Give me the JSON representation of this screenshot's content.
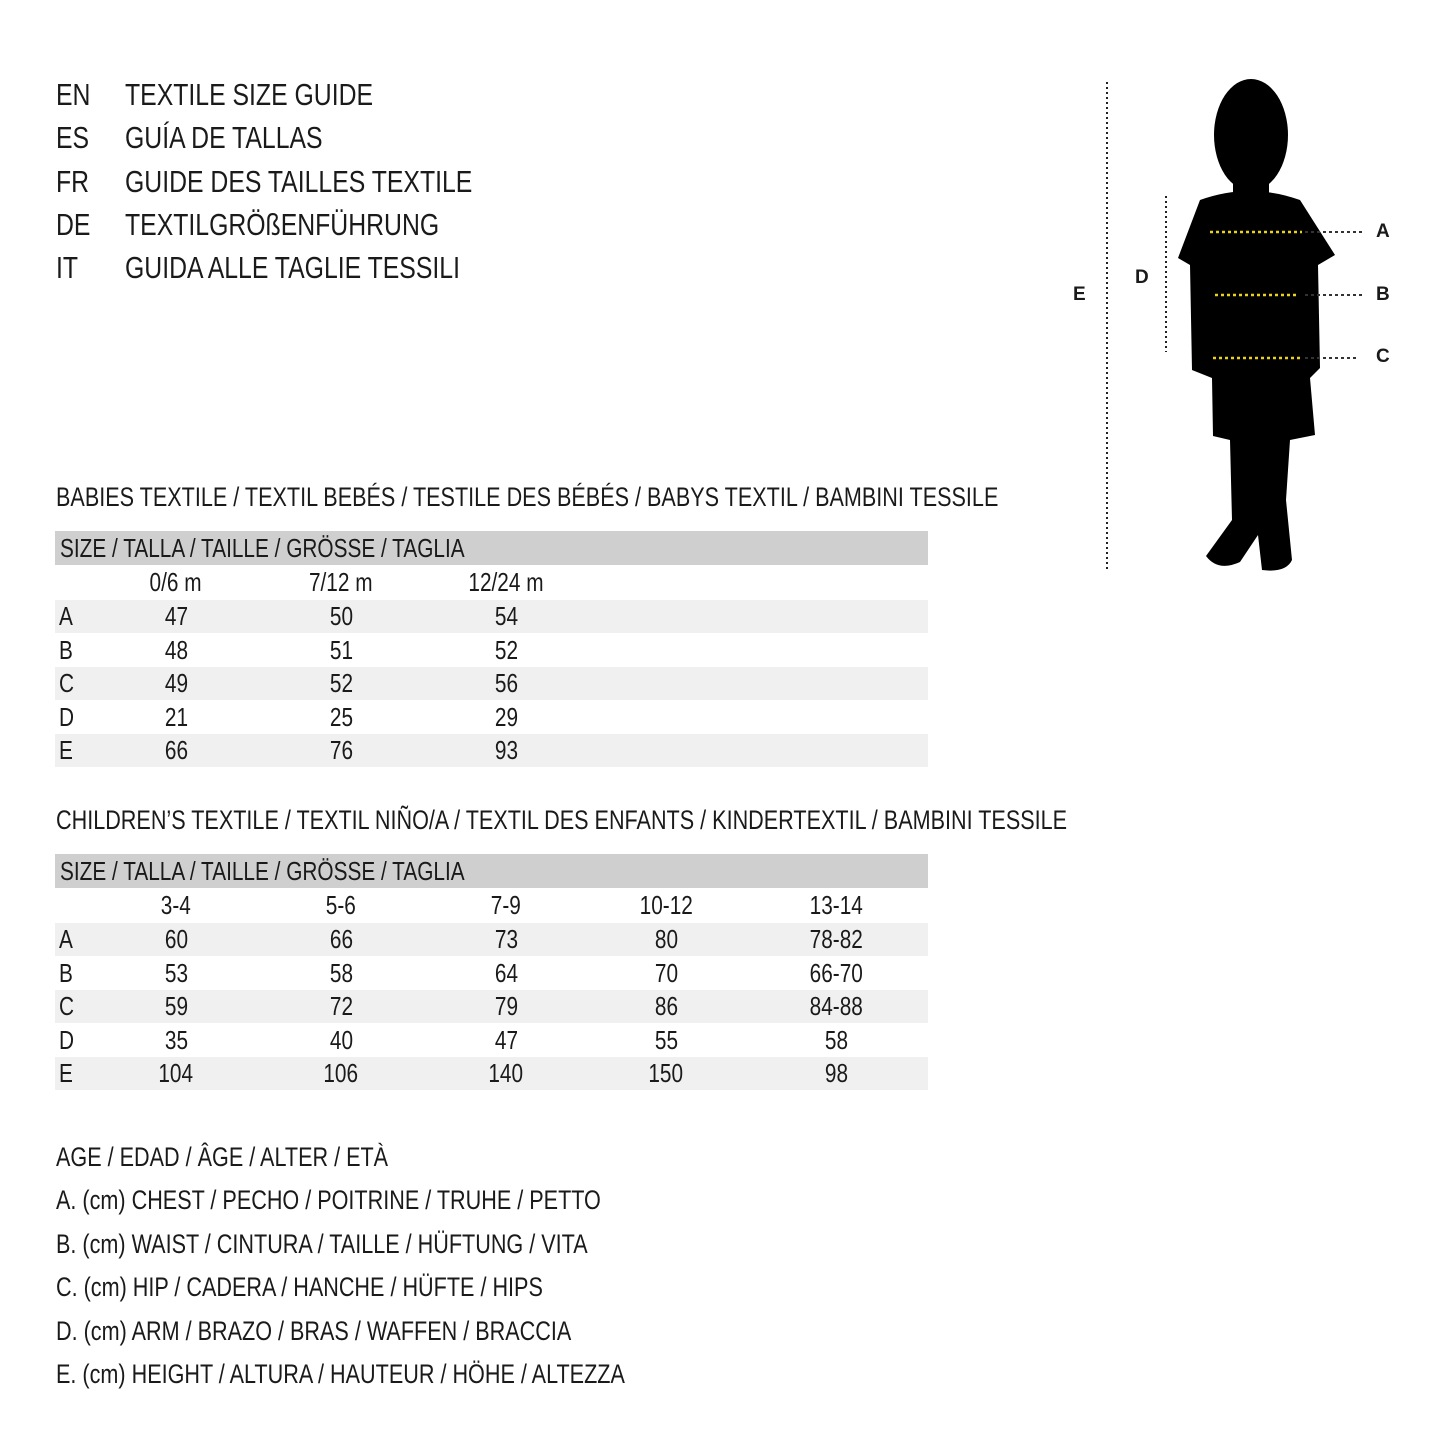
{
  "titles": [
    {
      "code": "EN",
      "text": "TEXTILE SIZE GUIDE"
    },
    {
      "code": "ES",
      "text": "GUÍA DE TALLAS"
    },
    {
      "code": "FR",
      "text": "GUIDE DES TAILLES TEXTILE"
    },
    {
      "code": "DE",
      "text": "TEXTILGRÖßENFÜHRUNG"
    },
    {
      "code": "IT",
      "text": "GUIDA ALLE TAGLIE TESSILI"
    }
  ],
  "figure": {
    "labels": {
      "A": "A",
      "B": "B",
      "C": "C",
      "D": "D",
      "E": "E"
    },
    "measure_line_color": "#e8d21d"
  },
  "babies": {
    "heading": "BABIES TEXTILE / TEXTIL BEBÉS / TESTILE DES BÉBÉS / BABYS TEXTIL / BAMBINI TESSILE",
    "size_label": "SIZE / TALLA / TAILLE / GRÖSSE / TAGLIA",
    "columns": [
      "0/6 m",
      "7/12 m",
      "12/24 m"
    ],
    "rows": [
      {
        "label": "A",
        "values": [
          "47",
          "50",
          "54"
        ]
      },
      {
        "label": "B",
        "values": [
          "48",
          "51",
          "52"
        ]
      },
      {
        "label": "C",
        "values": [
          "49",
          "52",
          "56"
        ]
      },
      {
        "label": "D",
        "values": [
          "21",
          "25",
          "29"
        ]
      },
      {
        "label": "E",
        "values": [
          "66",
          "76",
          "93"
        ]
      }
    ]
  },
  "children": {
    "heading": "CHILDREN’S TEXTILE / TEXTIL NIÑO/A / TEXTIL DES ENFANTS / KINDERTEXTIL / BAMBINI TESSILE",
    "size_label": "SIZE / TALLA / TAILLE / GRÖSSE / TAGLIA",
    "columns": [
      "3-4",
      "5-6",
      "7-9",
      "10-12",
      "13-14"
    ],
    "rows": [
      {
        "label": "A",
        "values": [
          "60",
          "66",
          "73",
          "80",
          "78-82"
        ]
      },
      {
        "label": "B",
        "values": [
          "53",
          "58",
          "64",
          "70",
          "66-70"
        ]
      },
      {
        "label": "C",
        "values": [
          "59",
          "72",
          "79",
          "86",
          "84-88"
        ]
      },
      {
        "label": "D",
        "values": [
          "35",
          "40",
          "47",
          "55",
          "58"
        ]
      },
      {
        "label": "E",
        "values": [
          "104",
          "106",
          "140",
          "150",
          "98"
        ]
      }
    ]
  },
  "legend": [
    "AGE / EDAD / ÂGE / ALTER / ETÀ",
    "A. (cm) CHEST / PECHO / POITRINE / TRUHE / PETTO",
    "B. (cm) WAIST / CINTURA / TAILLE / HÜFTUNG / VITA",
    "C. (cm) HIP / CADERA / HANCHE / HÜFTE / HIPS",
    "D. (cm) ARM / BRAZO / BRAS / WAFFEN / BRACCIA",
    "E. (cm) HEIGHT / ALTURA / HAUTEUR / HÖHE / ALTEZZA"
  ]
}
